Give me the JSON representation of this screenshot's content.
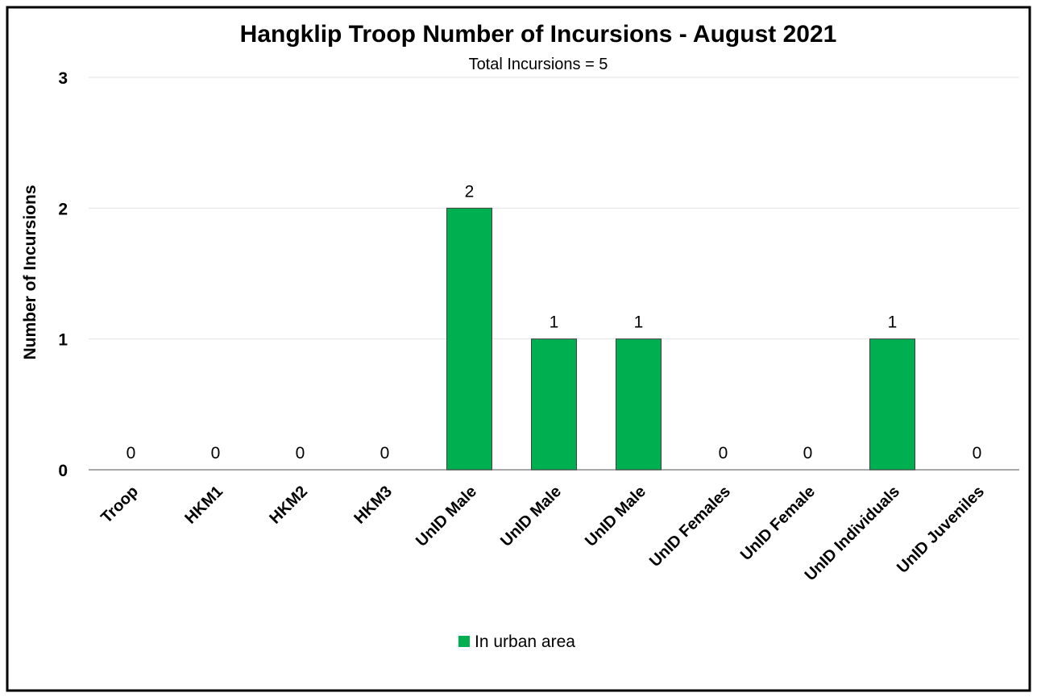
{
  "chart_data": {
    "type": "bar",
    "title": "Hangklip Troop Number of Incursions - August 2021",
    "subtitle": "Total Incursions = 5",
    "ylabel": "Number of Incursions",
    "xlabel": "",
    "categories": [
      "Troop",
      "HKM1",
      "HKM2",
      "HKM3",
      "UnID Male",
      "UnID Male",
      "UnID Male",
      "UnID Females",
      "UnID Female",
      "UnID Individuals",
      "UnID Juveniles"
    ],
    "series": [
      {
        "name": "In urban area",
        "values": [
          0,
          0,
          0,
          0,
          2,
          1,
          1,
          0,
          0,
          1,
          0
        ],
        "color": "#00B050"
      }
    ],
    "ylim": [
      0,
      3
    ],
    "yticks": [
      0,
      1,
      2,
      3
    ],
    "grid": true,
    "legend_position": "bottom",
    "data_labels": true
  }
}
